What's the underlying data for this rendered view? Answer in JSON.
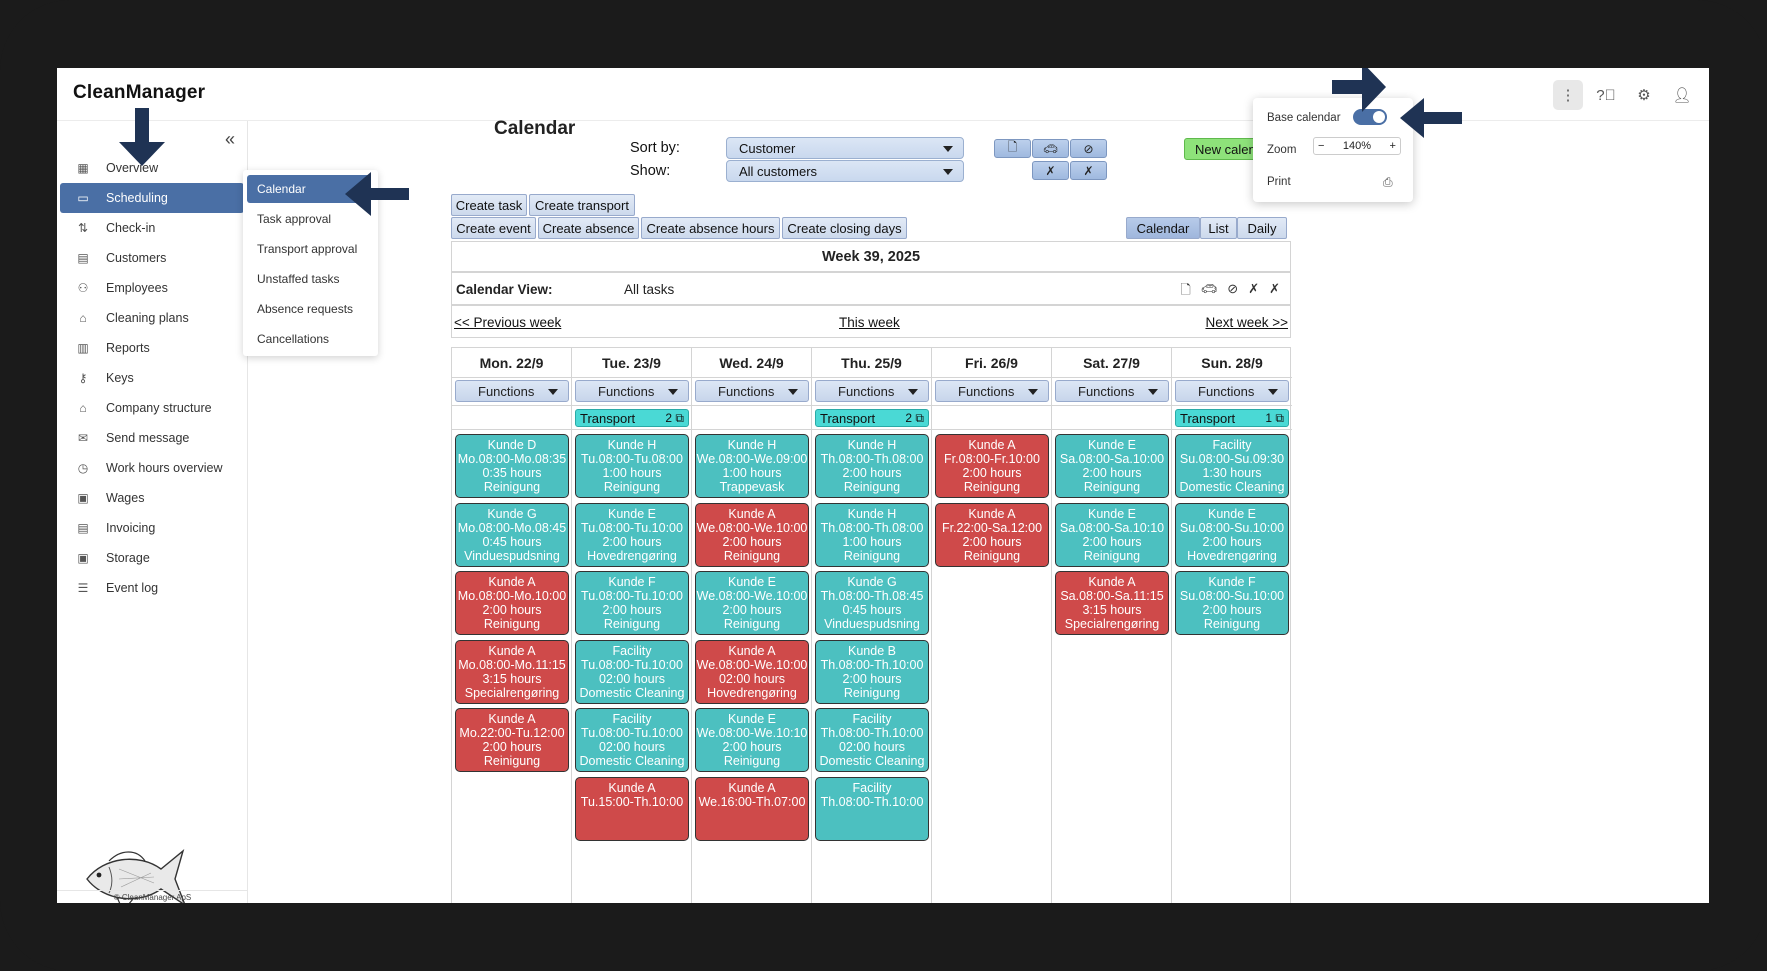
{
  "app": {
    "title": "CleanManager"
  },
  "topbar": {
    "icons": [
      "more-vertical-icon",
      "help-icon",
      "settings-gear-icon",
      "user-icon"
    ]
  },
  "sidebar": {
    "items": [
      {
        "label": "Overview",
        "icon": "grid-icon"
      },
      {
        "label": "Scheduling",
        "icon": "calendar-icon"
      },
      {
        "label": "Check-in",
        "icon": "arrows-updown-icon"
      },
      {
        "label": "Customers",
        "icon": "building-icon"
      },
      {
        "label": "Employees",
        "icon": "people-icon"
      },
      {
        "label": "Cleaning plans",
        "icon": "tag-icon"
      },
      {
        "label": "Reports",
        "icon": "report-icon"
      },
      {
        "label": "Keys",
        "icon": "key-icon"
      },
      {
        "label": "Company structure",
        "icon": "home-icon"
      },
      {
        "label": "Send message",
        "icon": "mail-icon"
      },
      {
        "label": "Work hours overview",
        "icon": "clock-icon"
      },
      {
        "label": "Wages",
        "icon": "wallet-icon"
      },
      {
        "label": "Invoicing",
        "icon": "invoice-icon"
      },
      {
        "label": "Storage",
        "icon": "storage-icon"
      },
      {
        "label": "Event log",
        "icon": "list-icon"
      }
    ],
    "copyright": "© CleanManager ApS"
  },
  "submenu": {
    "items": [
      "Calendar",
      "Task approval",
      "Transport approval",
      "Unstaffed tasks",
      "Absence requests",
      "Cancellations"
    ]
  },
  "page": {
    "title": "Calendar"
  },
  "filters": {
    "sort_label": "Sort by:",
    "sort_value": "Customer",
    "show_label": "Show:",
    "show_value": "All customers",
    "new_calendar": "New calendar"
  },
  "actions": {
    "row1": [
      "Create task",
      "Create transport"
    ],
    "row2": [
      "Create event",
      "Create absence",
      "Create absence hours",
      "Create closing days"
    ],
    "views": [
      "Calendar",
      "List",
      "Daily"
    ]
  },
  "week": {
    "title": "Week 39, 2025",
    "view_label": "Calendar View:",
    "view_value": "All tasks",
    "prev": "<< Previous week",
    "this": "This week",
    "next": "Next week >>"
  },
  "functions_label": "Functions",
  "transport_label": "Transport",
  "days": [
    {
      "label": "Mon. 22/9",
      "transport": null,
      "tasks": [
        {
          "color": "teal",
          "lines": [
            "Kunde D",
            "Mo.08:00-Mo.08:35",
            "0:35 hours",
            "Reinigung"
          ]
        },
        {
          "color": "teal",
          "lines": [
            "Kunde G",
            "Mo.08:00-Mo.08:45",
            "0:45 hours",
            "Vinduespudsning"
          ]
        },
        {
          "color": "red",
          "lines": [
            "Kunde A",
            "Mo.08:00-Mo.10:00",
            "2:00 hours",
            "Reinigung"
          ]
        },
        {
          "color": "red",
          "lines": [
            "Kunde A",
            "Mo.08:00-Mo.11:15",
            "3:15 hours",
            "Specialrengøring"
          ]
        },
        {
          "color": "red",
          "lines": [
            "Kunde A",
            "Mo.22:00-Tu.12:00",
            "2:00 hours",
            "Reinigung"
          ]
        }
      ]
    },
    {
      "label": "Tue. 23/9",
      "transport": "2",
      "tasks": [
        {
          "color": "teal",
          "lines": [
            "Kunde H",
            "Tu.08:00-Tu.08:00",
            "1:00 hours",
            "Reinigung"
          ]
        },
        {
          "color": "teal",
          "lines": [
            "Kunde E",
            "Tu.08:00-Tu.10:00",
            "2:00 hours",
            "Hovedrengøring"
          ]
        },
        {
          "color": "teal",
          "lines": [
            "Kunde F",
            "Tu.08:00-Tu.10:00",
            "2:00 hours",
            "Reinigung"
          ]
        },
        {
          "color": "teal",
          "lines": [
            "Facility",
            "Tu.08:00-Tu.10:00",
            "02:00 hours",
            "Domestic Cleaning"
          ]
        },
        {
          "color": "teal",
          "lines": [
            "Facility",
            "Tu.08:00-Tu.10:00",
            "02:00 hours",
            "Domestic Cleaning"
          ]
        },
        {
          "color": "red",
          "lines": [
            "Kunde A",
            "Tu.15:00-Th.10:00",
            "",
            ""
          ]
        }
      ]
    },
    {
      "label": "Wed. 24/9",
      "transport": null,
      "tasks": [
        {
          "color": "teal",
          "lines": [
            "Kunde H",
            "We.08:00-We.09:00",
            "1:00 hours",
            "Trappevask"
          ]
        },
        {
          "color": "red",
          "lines": [
            "Kunde A",
            "We.08:00-We.10:00",
            "2:00 hours",
            "Reinigung"
          ]
        },
        {
          "color": "teal",
          "lines": [
            "Kunde E",
            "We.08:00-We.10:00",
            "2:00 hours",
            "Reinigung"
          ]
        },
        {
          "color": "red",
          "lines": [
            "Kunde A",
            "We.08:00-We.10:00",
            "02:00 hours",
            "Hovedrengøring"
          ]
        },
        {
          "color": "teal",
          "lines": [
            "Kunde E",
            "We.08:00-We.10:10",
            "2:00 hours",
            "Reinigung"
          ]
        },
        {
          "color": "red",
          "lines": [
            "Kunde A",
            "We.16:00-Th.07:00",
            "",
            ""
          ]
        }
      ]
    },
    {
      "label": "Thu. 25/9",
      "transport": "2",
      "tasks": [
        {
          "color": "teal",
          "lines": [
            "Kunde H",
            "Th.08:00-Th.08:00",
            "2:00 hours",
            "Reinigung"
          ]
        },
        {
          "color": "teal",
          "lines": [
            "Kunde H",
            "Th.08:00-Th.08:00",
            "1:00 hours",
            "Reinigung"
          ]
        },
        {
          "color": "teal",
          "lines": [
            "Kunde G",
            "Th.08:00-Th.08:45",
            "0:45 hours",
            "Vinduespudsning"
          ]
        },
        {
          "color": "teal",
          "lines": [
            "Kunde B",
            "Th.08:00-Th.10:00",
            "2:00 hours",
            "Reinigung"
          ]
        },
        {
          "color": "teal",
          "lines": [
            "Facility",
            "Th.08:00-Th.10:00",
            "02:00 hours",
            "Domestic Cleaning"
          ]
        },
        {
          "color": "teal",
          "lines": [
            "Facility",
            "Th.08:00-Th.10:00",
            "",
            ""
          ]
        }
      ]
    },
    {
      "label": "Fri. 26/9",
      "transport": null,
      "tasks": [
        {
          "color": "red",
          "lines": [
            "Kunde A",
            "Fr.08:00-Fr.10:00",
            "2:00 hours",
            "Reinigung"
          ]
        },
        {
          "color": "red",
          "lines": [
            "Kunde A",
            "Fr.22:00-Sa.12:00",
            "2:00 hours",
            "Reinigung"
          ]
        }
      ]
    },
    {
      "label": "Sat. 27/9",
      "transport": null,
      "tasks": [
        {
          "color": "teal",
          "lines": [
            "Kunde E",
            "Sa.08:00-Sa.10:00",
            "2:00 hours",
            "Reinigung"
          ]
        },
        {
          "color": "teal",
          "lines": [
            "Kunde E",
            "Sa.08:00-Sa.10:10",
            "2:00 hours",
            "Reinigung"
          ]
        },
        {
          "color": "red",
          "lines": [
            "Kunde A",
            "Sa.08:00-Sa.11:15",
            "3:15 hours",
            "Specialrengøring"
          ]
        }
      ]
    },
    {
      "label": "Sun. 28/9",
      "transport": "1",
      "tasks": [
        {
          "color": "teal",
          "lines": [
            "Facility",
            "Su.08:00-Su.09:30",
            "1:30 hours",
            "Domestic Cleaning"
          ]
        },
        {
          "color": "teal",
          "lines": [
            "Kunde E",
            "Su.08:00-Su.10:00",
            "2:00 hours",
            "Hovedrengøring"
          ]
        },
        {
          "color": "teal",
          "lines": [
            "Kunde F",
            "Su.08:00-Su.10:00",
            "2:00 hours",
            "Reinigung"
          ]
        }
      ]
    }
  ],
  "settings_menu": {
    "base_calendar": "Base calendar",
    "base_calendar_on": true,
    "zoom_label": "Zoom",
    "zoom_value": "140%",
    "zoom_minus": "−",
    "zoom_plus": "+",
    "print": "Print"
  },
  "colors": {
    "accent": "#4a6fa5",
    "teal": "#4cc0c0",
    "red": "#cf4a4a",
    "arrow": "#1f3354"
  }
}
